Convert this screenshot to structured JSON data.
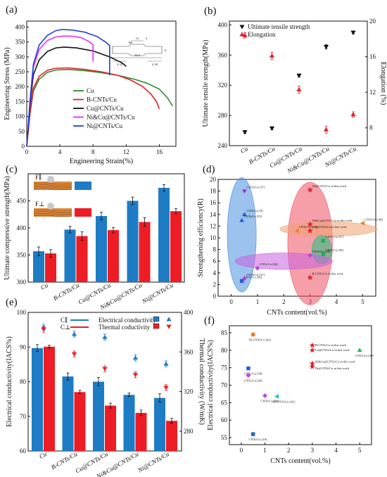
{
  "panels": [
    {
      "id": "a",
      "label": "(a)",
      "chart_data": {
        "type": "line",
        "xlabel": "Engineering Strain(%)",
        "ylabel": "Engineering Stress (MPa)",
        "xlim": [
          0,
          18
        ],
        "ylim": [
          0,
          420
        ],
        "xticks": [
          0,
          4,
          8,
          12,
          16
        ],
        "yticks": [
          0,
          50,
          100,
          150,
          200,
          250,
          300,
          350,
          400
        ],
        "legend_position": "bottom-right",
        "inset_dims": [
          "12",
          "16.5",
          "4.33",
          "4.30",
          "6",
          "2",
          "R6"
        ],
        "series": [
          {
            "name": "Cu",
            "color": "#2e8b2e",
            "x": [
              0,
              0.4,
              0.8,
              1.5,
              2.5,
              3.5,
              5,
              7,
              9,
              11,
              13,
              14.5,
              16,
              17,
              17.6
            ],
            "y": [
              0,
              110,
              185,
              225,
              248,
              256,
              258,
              254,
              247,
              238,
              225,
              212,
              192,
              162,
              135
            ]
          },
          {
            "name": "B-CNTs/Cu",
            "color": "#e0202a",
            "x": [
              0,
              0.4,
              0.8,
              1.5,
              2.5,
              3.5,
              5,
              7,
              9,
              11,
              12.5,
              14,
              15,
              15.7,
              16
            ],
            "y": [
              0,
              115,
              195,
              235,
              255,
              262,
              263,
              258,
              250,
              238,
              223,
              200,
              175,
              148,
              125
            ]
          },
          {
            "name": "Cu@CNTs/Cu",
            "color": "#111111",
            "x": [
              0,
              0.4,
              0.8,
              1.5,
              2.5,
              3.5,
              4.5,
              6,
              8,
              10,
              11.5,
              12
            ],
            "y": [
              0,
              140,
              240,
              290,
              318,
              330,
              333,
              330,
              320,
              300,
              280,
              268
            ]
          },
          {
            "name": "Ni&Cu@CNTs/Cu",
            "color": "#e830e8",
            "x": [
              0,
              0.4,
              0.8,
              1.5,
              2.5,
              3.5,
              4.5,
              5.5,
              6.5,
              7.5,
              8,
              8
            ],
            "y": [
              0,
              150,
              265,
              325,
              355,
              367,
              370,
              369,
              365,
              352,
              340,
              284
            ]
          },
          {
            "name": "Ni@CNTs/Cu",
            "color": "#2040e0",
            "x": [
              0,
              0.4,
              0.8,
              1.5,
              2.5,
              3.5,
              4.3,
              5.5,
              7,
              8.5,
              9.5,
              10,
              10
            ],
            "y": [
              0,
              155,
              275,
              340,
              372,
              388,
              392,
              390,
              383,
              368,
              350,
              338,
              238
            ]
          }
        ]
      }
    },
    {
      "id": "b",
      "label": "(b)",
      "chart_data": {
        "type": "scatter",
        "categories": [
          "Cu",
          "B-CNTs/Cu",
          "Cu@CNTs/Cu",
          "Ni&Cu@CNTs/Cu",
          "Ni@CNTs/Cu"
        ],
        "ylabel": "Ultimate tensile strength(MPa)",
        "y2label": "Elongation (%)",
        "ylim": [
          240,
          405
        ],
        "y2lim": [
          6,
          20
        ],
        "yticks": [
          240,
          280,
          320,
          360,
          400
        ],
        "y2ticks": [
          8,
          12,
          16,
          20
        ],
        "legend_position": "top",
        "series": [
          {
            "name": "Ultimate tensile strength",
            "axis": "left",
            "color": "#111111",
            "marker": "triangle-down",
            "values": [
              258,
              263,
              333,
              371,
              390
            ],
            "errors": [
              2,
              2,
              2,
              3,
              2
            ]
          },
          {
            "name": "Elongation",
            "axis": "right",
            "color": "#e0202a",
            "marker": "triangle-up",
            "values": [
              18.4,
              16.1,
              12.3,
              7.8,
              9.5
            ],
            "errors": [
              0.3,
              0.4,
              0.4,
              0.4,
              0.3
            ]
          }
        ]
      }
    },
    {
      "id": "c",
      "label": "(c)",
      "chart_data": {
        "type": "bar",
        "categories": [
          "Cu",
          "B-CNTs/Cu",
          "Cu@CNTs/Cu",
          "Ni&Cu@CNTs/Cu",
          "Ni@CNTs/Cu"
        ],
        "ylabel": "Ultimate compressive strength(MPa)",
        "ylim": [
          300,
          500
        ],
        "yticks": [
          300,
          350,
          400,
          450
        ],
        "legend_position": "top-left",
        "series": [
          {
            "name": "F∥",
            "color": "#1e7cc4",
            "values": [
              357,
              397,
              422,
              450,
              474
            ],
            "errors": [
              8,
              6,
              7,
              7,
              6
            ]
          },
          {
            "name": "F⊥",
            "color": "#ee1c24",
            "values": [
              353,
              385,
              396,
              411,
              431
            ],
            "errors": [
              7,
              8,
              5,
              8,
              5
            ]
          }
        ]
      }
    },
    {
      "id": "d",
      "label": "(d)",
      "chart_data": {
        "type": "scatter",
        "xlabel": "CNTs content(vol.%)",
        "ylabel": "Strengthening efficiency(R)",
        "xlim": [
          -0.5,
          5.5
        ],
        "ylim": [
          0,
          20
        ],
        "xticks": [
          0,
          1,
          2,
          3,
          4,
          5
        ],
        "yticks": [
          0,
          2,
          4,
          6,
          8,
          10,
          12,
          14,
          16,
          18,
          20
        ],
        "points": [
          {
            "label": "CNTs/Cu [37]",
            "x": 0.5,
            "y": 18.0,
            "color": "#9b30d9",
            "marker": "triangle-down"
          },
          {
            "label": "CNTs/Cu [8]",
            "x": 0.5,
            "y": 14.0,
            "color": "#2060e0",
            "marker": "triangle-up"
          },
          {
            "label": "CNTs/Cu [35]",
            "x": 0.4,
            "y": 13.0,
            "color": "#2060e0",
            "marker": "triangle-up"
          },
          {
            "label": "Ni@CNTs/Cu in this work",
            "x": 3.0,
            "y": 18.2,
            "color": "#e0202a",
            "marker": "star"
          },
          {
            "label": "Ni&Cu@CNTs/Cu in this work",
            "x": 3.0,
            "y": 12.3,
            "color": "#e0202a",
            "marker": "star"
          },
          {
            "label": "Cu@CNTs/Cu in this work",
            "x": 3.0,
            "y": 11.2,
            "color": "#e0202a",
            "marker": "star"
          },
          {
            "label": "B-CNTs/Cu in this work",
            "x": 3.0,
            "y": 3.2,
            "color": "#e0202a",
            "marker": "star"
          },
          {
            "label": "CNTs/Cu [38]",
            "x": 5.0,
            "y": 12.5,
            "color": "#f08020",
            "marker": "triangle-left"
          },
          {
            "label": "CNTs/Cu [18]",
            "x": 2.5,
            "y": 11.2,
            "color": "#f08020",
            "marker": "triangle-left"
          },
          {
            "label": "CNTs/Cu [27]",
            "x": 3.5,
            "y": 9.5,
            "color": "#20b050",
            "marker": "square"
          },
          {
            "label": "CNTs/Cu [29]",
            "x": 3.5,
            "y": 7.2,
            "color": "#20b050",
            "marker": "square"
          },
          {
            "label": "CNTs/Cu [28]",
            "x": 3.0,
            "y": 7.0,
            "color": "#c040e0",
            "marker": "diamond"
          },
          {
            "label": "CNTs/Cu [26]",
            "x": 1.0,
            "y": 4.8,
            "color": "#c040e0",
            "marker": "diamond"
          },
          {
            "label": "CNTs/Cu [37]",
            "x": 0.5,
            "y": 3.0,
            "color": "#c040e0",
            "marker": "diamond"
          },
          {
            "label": "CNTs/Cu [36]",
            "x": 0.4,
            "y": 2.6,
            "color": "#2060e0",
            "marker": "square"
          }
        ],
        "regions": [
          {
            "cx": 0.4,
            "cy": 10.5,
            "rx": 0.55,
            "ry": 9.8,
            "color": "#4a8fe0"
          },
          {
            "cx": 3.0,
            "cy": 9.0,
            "rx": 0.85,
            "ry": 10.5,
            "color": "#f05060"
          },
          {
            "cx": 3.7,
            "cy": 11.5,
            "rx": 1.85,
            "ry": 1.2,
            "color": "#f0a070"
          },
          {
            "cx": 3.45,
            "cy": 8.0,
            "rx": 0.38,
            "ry": 2.4,
            "color": "#20c080"
          },
          {
            "cx": 2.0,
            "cy": 6.0,
            "rx": 1.85,
            "ry": 1.4,
            "color": "#c860e0"
          }
        ]
      }
    },
    {
      "id": "e",
      "label": "(e)",
      "chart_data": {
        "type": "bar",
        "categories": [
          "Cu",
          "B-CNTs/Cu",
          "Cu@CNTs/Cu",
          "Ni&Cu@CNTs/Cu",
          "Ni@CNTs/Cu"
        ],
        "ylabel": "Electrical conductivity(IACS%)",
        "y2label": "Thermal conductivity (W/mK)",
        "ylim": [
          60,
          100
        ],
        "y2lim": [
          260,
          400
        ],
        "yticks": [
          60,
          70,
          80,
          90,
          100
        ],
        "y2ticks": [
          280,
          320,
          360,
          400
        ],
        "legend": [
          {
            "symbol": "C∥",
            "label": "Electrical conductivity",
            "color": "#1e7cc4"
          },
          {
            "symbol": "C⊥",
            "label": "Thermal coductivity",
            "color": "#ee1c24"
          }
        ],
        "series": [
          {
            "name": "C∥ electrical",
            "kind": "bar",
            "color": "#1e7cc4",
            "values": [
              89.7,
              81.5,
              80.0,
              76.2,
              75.3
            ],
            "errors": [
              1.0,
              1.0,
              1.2,
              0.5,
              1.2
            ]
          },
          {
            "name": "C⊥ electrical",
            "kind": "bar",
            "color": "#ee1c24",
            "values": [
              90.1,
              77.0,
              73.1,
              71.0,
              68.7
            ],
            "errors": [
              0.4,
              0.5,
              0.7,
              0.8,
              0.7
            ]
          },
          {
            "name": "C∥ thermal",
            "kind": "marker",
            "marker": "triangle-up",
            "color": "#1e7cc4",
            "values": [
              385,
              378,
              375,
              354,
              348
            ],
            "errors": [
              3,
              3,
              3,
              3,
              3
            ]
          },
          {
            "name": "C⊥ thermal",
            "kind": "marker",
            "marker": "triangle-down",
            "color": "#ee1c24",
            "values": [
              383,
              358,
              343,
              337,
              324
            ],
            "errors": [
              3,
              3,
              3,
              3,
              3
            ]
          }
        ]
      }
    },
    {
      "id": "f",
      "label": "(f)",
      "chart_data": {
        "type": "scatter",
        "xlabel": "CNTs content(vol.%)",
        "ylabel": "Electrical conductivity(IACS%)",
        "xlim": [
          -0.5,
          5.5
        ],
        "ylim": [
          53,
          87
        ],
        "xticks": [
          0,
          1,
          2,
          3,
          4,
          5
        ],
        "yticks": [
          55,
          60,
          65,
          70,
          75,
          80,
          85
        ],
        "points": [
          {
            "label": "Ni-CNTs/Cu [41]",
            "x": 0.5,
            "y": 84.5,
            "color": "#f08020",
            "marker": "square"
          },
          {
            "label": "CNTs/Cu [39]",
            "x": 0.3,
            "y": 74.8,
            "color": "#2060e0",
            "marker": "square"
          },
          {
            "label": "CNTs/Cu [26]",
            "x": 0.3,
            "y": 72.8,
            "color": "#c040e0",
            "marker": "diamond"
          },
          {
            "label": "CNTs/Cu [28]",
            "x": 1.0,
            "y": 67.0,
            "color": "#c040e0",
            "marker": "diamond"
          },
          {
            "label": "Ni-CNTs/Cu [42]",
            "x": 1.5,
            "y": 66.8,
            "color": "#20c0d0",
            "marker": "triangle-left"
          },
          {
            "label": "CNTs/Cu [19]",
            "x": 0.5,
            "y": 56.0,
            "color": "#2060e0",
            "marker": "square"
          },
          {
            "label": "CNTs/Cu [40]",
            "x": 5.0,
            "y": 80.0,
            "color": "#20b050",
            "marker": "triangle-up"
          },
          {
            "label": "B-CNTs/Cu in this work",
            "x": 3.0,
            "y": 81.4,
            "color": "#e0202a",
            "marker": "star"
          },
          {
            "label": "Cu@CNTs/Cu in this work",
            "x": 3.0,
            "y": 80.0,
            "color": "#e0202a",
            "marker": "star"
          },
          {
            "label": "Ni&Cu@CNTs/Cu in this work",
            "x": 3.0,
            "y": 76.2,
            "color": "#e0202a",
            "marker": "star"
          },
          {
            "label": "Ni@CNTs/Cu in this work",
            "x": 3.0,
            "y": 75.3,
            "color": "#e0202a",
            "marker": "star"
          }
        ]
      }
    }
  ]
}
